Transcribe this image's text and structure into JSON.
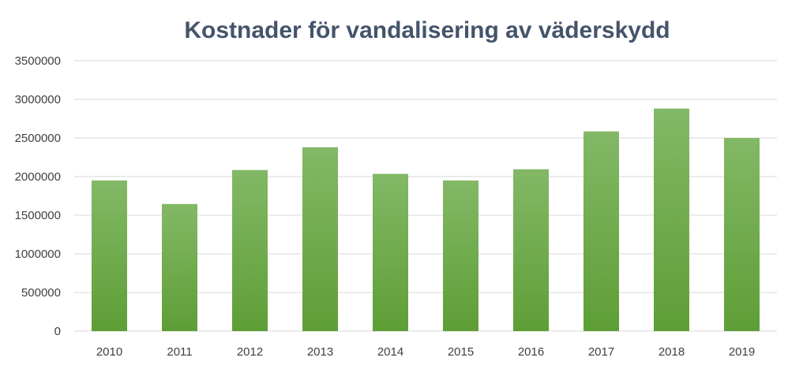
{
  "chart_data": {
    "type": "bar",
    "title": "Kostnader för vandalisering av väderskydd",
    "xlabel": "",
    "ylabel": "",
    "categories": [
      "2010",
      "2011",
      "2012",
      "2013",
      "2014",
      "2015",
      "2016",
      "2017",
      "2018",
      "2019"
    ],
    "values": [
      1950000,
      1645000,
      2085000,
      2380000,
      2035000,
      1950000,
      2095000,
      2585000,
      2880000,
      2500000
    ],
    "ylim": [
      0,
      3500000
    ],
    "yticks": [
      "0",
      "500000",
      "1000000",
      "1500000",
      "2000000",
      "2500000",
      "3000000",
      "3500000"
    ],
    "grid": true,
    "legend": "none",
    "bar_color_top": "#83b866",
    "bar_color_bottom": "#5e9e36"
  }
}
